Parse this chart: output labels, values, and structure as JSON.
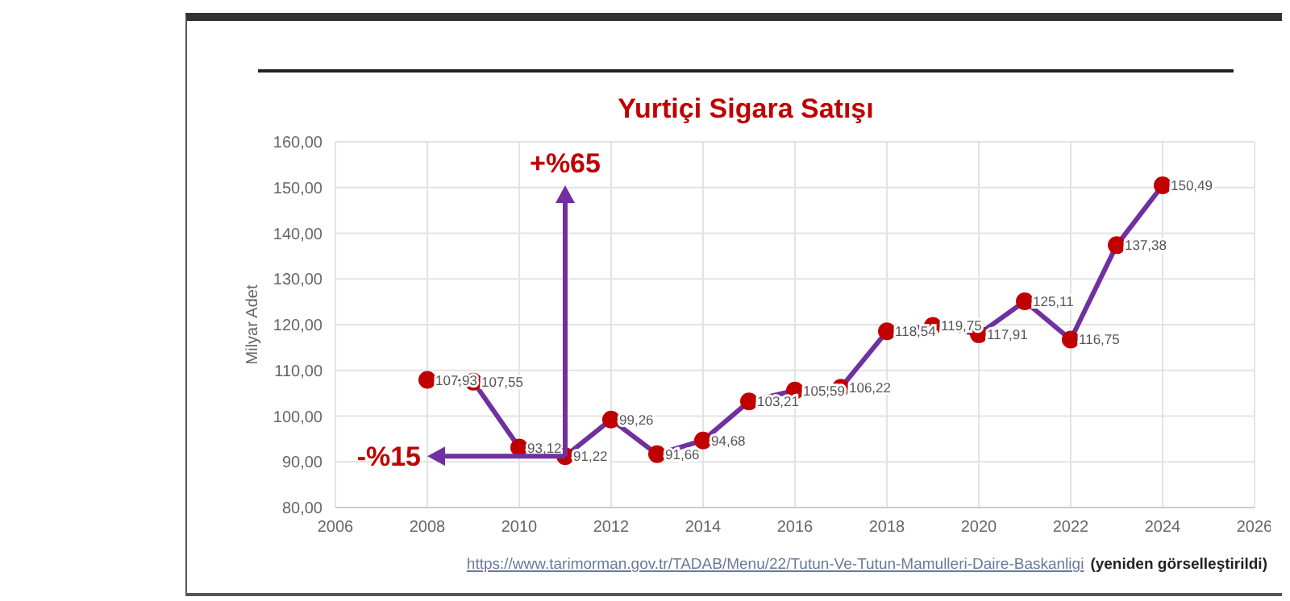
{
  "chart_data": {
    "type": "line",
    "title": "Yurtiçi Sigara Satışı",
    "ylabel": "Milyar Adet",
    "x": [
      2008,
      2009,
      2010,
      2011,
      2012,
      2013,
      2014,
      2015,
      2016,
      2017,
      2018,
      2019,
      2020,
      2021,
      2022,
      2023,
      2024
    ],
    "series": [
      {
        "color": "#7030a0",
        "values": [
          107.93,
          107.55,
          93.12,
          91.22,
          99.26,
          91.66,
          94.68,
          103.21,
          105.59,
          106.22,
          118.54,
          119.75,
          117.91,
          125.11,
          116.75,
          137.38,
          150.49
        ],
        "value_labels": [
          "107,93",
          "107,55",
          "93,12",
          "91,22",
          "99,26",
          "91,66",
          "94,68",
          "103,21",
          "105,59",
          "106,22",
          "118,54",
          "119,75",
          "117,91",
          "125,11",
          "116,75",
          "137,38",
          "150,49"
        ]
      }
    ],
    "marker": "circle",
    "grid": true,
    "xlim": [
      2006,
      2026
    ],
    "xticks": [
      2006,
      2008,
      2010,
      2012,
      2014,
      2016,
      2018,
      2020,
      2022,
      2024,
      2026
    ],
    "ylim": [
      80,
      160
    ],
    "yticks": [
      {
        "value": 80,
        "label": "80,00"
      },
      {
        "value": 90,
        "label": "90,00"
      },
      {
        "value": 100,
        "label": "100,00"
      },
      {
        "value": 110,
        "label": "110,00"
      },
      {
        "value": 120,
        "label": "120,00"
      },
      {
        "value": 130,
        "label": "130,00"
      },
      {
        "value": 140,
        "label": "140,00"
      },
      {
        "value": 150,
        "label": "150,00"
      },
      {
        "value": 160,
        "label": "160,00"
      }
    ],
    "annotations": [
      {
        "text": "+%65",
        "x": 2011,
        "y": 91.22
      },
      "-%15",
      "https://www.tarimorman.gov.tr/TADAB/Menu/22/Tutun-Ve-Tutun-Mamulleri-Daire-Baskanligi",
      "(yeniden görselleştirildi)"
    ]
  }
}
